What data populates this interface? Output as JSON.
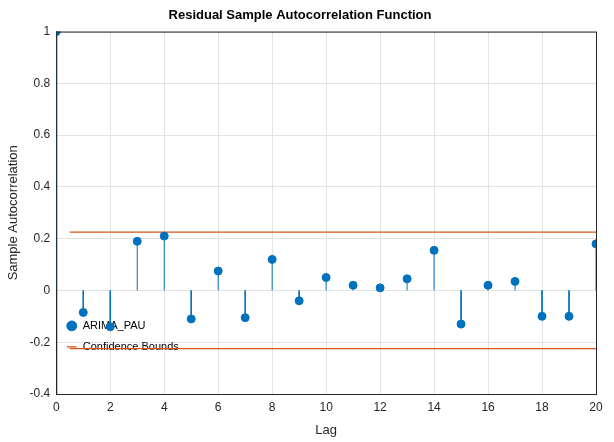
{
  "chart_data": {
    "type": "stem",
    "title": "Residual Sample Autocorrelation Function",
    "x_label": "Lag",
    "y_label": "Sample Autocorrelation",
    "x": [
      0,
      1,
      2,
      3,
      4,
      5,
      6,
      7,
      8,
      9,
      10,
      11,
      12,
      13,
      14,
      15,
      16,
      17,
      18,
      19,
      20
    ],
    "series": [
      {
        "name": "ARIMA_PAU",
        "color": "#0072bd",
        "marker": "circle",
        "values": [
          1,
          -0.085,
          -0.14,
          0.19,
          0.21,
          -0.11,
          0.075,
          -0.105,
          0.12,
          -0.04,
          0.05,
          0.02,
          0.01,
          0.045,
          0.155,
          -0.13,
          0.02,
          0.035,
          -0.1,
          -0.1,
          0.18
        ]
      }
    ],
    "confidence_bounds": {
      "name": "Confidence Bounds",
      "color": "#d95319",
      "line_style": "solid",
      "x": [
        0.5,
        20
      ],
      "upper": [
        0.225,
        0.225
      ],
      "lower": [
        -0.225,
        -0.225
      ]
    },
    "xlim": [
      0,
      20
    ],
    "xticks": [
      0,
      2,
      4,
      6,
      8,
      10,
      12,
      14,
      16,
      18,
      20
    ],
    "ylim": [
      -0.4,
      1
    ],
    "yticks": [
      -0.4,
      -0.2,
      0,
      0.2,
      0.4,
      0.6,
      0.8,
      1
    ],
    "grid": true,
    "legend": "northeast"
  }
}
